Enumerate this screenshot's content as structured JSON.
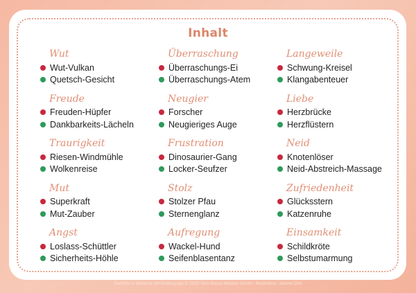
{
  "title": "Inhalt",
  "colors": {
    "heading": "#e08f74",
    "red_dot": "#c8283f",
    "green_dot": "#2f9a5b",
    "border": "#e3a18d"
  },
  "columns": [
    {
      "groups": [
        {
          "heading": "Wut",
          "items": [
            {
              "label": "Wut-Vulkan",
              "dot": "red"
            },
            {
              "label": "Quetsch-Gesicht",
              "dot": "green"
            }
          ]
        },
        {
          "heading": "Freude",
          "items": [
            {
              "label": "Freuden-Hüpfer",
              "dot": "red"
            },
            {
              "label": "Dankbarkeits-Lächeln",
              "dot": "green"
            }
          ]
        },
        {
          "heading": "Traurigkeit",
          "items": [
            {
              "label": "Riesen-Windmühle",
              "dot": "red"
            },
            {
              "label": "Wolkenreise",
              "dot": "green"
            }
          ]
        },
        {
          "heading": "Mut",
          "items": [
            {
              "label": "Superkraft",
              "dot": "red"
            },
            {
              "label": "Mut-Zauber",
              "dot": "green"
            }
          ]
        },
        {
          "heading": "Angst",
          "items": [
            {
              "label": "Loslass-Schüttler",
              "dot": "red"
            },
            {
              "label": "Sicherheits-Höhle",
              "dot": "green"
            }
          ]
        }
      ]
    },
    {
      "groups": [
        {
          "heading": "Überraschung",
          "items": [
            {
              "label": "Überraschungs-Ei",
              "dot": "red"
            },
            {
              "label": "Überraschungs-Atem",
              "dot": "green"
            }
          ]
        },
        {
          "heading": "Neugier",
          "items": [
            {
              "label": "Forscher",
              "dot": "red"
            },
            {
              "label": "Neugieriges Auge",
              "dot": "green"
            }
          ]
        },
        {
          "heading": "Frustration",
          "items": [
            {
              "label": "Dinosaurier-Gang",
              "dot": "red"
            },
            {
              "label": "Locker-Seufzer",
              "dot": "green"
            }
          ]
        },
        {
          "heading": "Stolz",
          "items": [
            {
              "label": "Stolzer Pfau",
              "dot": "red"
            },
            {
              "label": "Sternenglanz",
              "dot": "green"
            }
          ]
        },
        {
          "heading": "Aufregung",
          "items": [
            {
              "label": "Wackel-Hund",
              "dot": "red"
            },
            {
              "label": "Seifenblasentanz",
              "dot": "green"
            }
          ]
        }
      ]
    },
    {
      "groups": [
        {
          "heading": "Langeweile",
          "items": [
            {
              "label": "Schwung-Kreisel",
              "dot": "red"
            },
            {
              "label": "Klangabenteuer",
              "dot": "green"
            }
          ]
        },
        {
          "heading": "Liebe",
          "items": [
            {
              "label": "Herzbrücke",
              "dot": "red"
            },
            {
              "label": "Herzflüstern",
              "dot": "green"
            }
          ]
        },
        {
          "heading": "Neid",
          "items": [
            {
              "label": "Knotenlöser",
              "dot": "red"
            },
            {
              "label": "Neid-Abstreich-Massage",
              "dot": "green"
            }
          ]
        },
        {
          "heading": "Zufriedenheit",
          "items": [
            {
              "label": "Glücksstern",
              "dot": "red"
            },
            {
              "label": "Katzenruhe",
              "dot": "green"
            }
          ]
        },
        {
          "heading": "Einsamkeit",
          "items": [
            {
              "label": "Schildkröte",
              "dot": "red"
            },
            {
              "label": "Selbstumarmung",
              "dot": "green"
            }
          ]
        }
      ]
    }
  ],
  "footer": "Gefühle in Balance mit Kinderyoga © 2025 Don Bosco Medien GmbH, Illustration: Jasmin Dini"
}
